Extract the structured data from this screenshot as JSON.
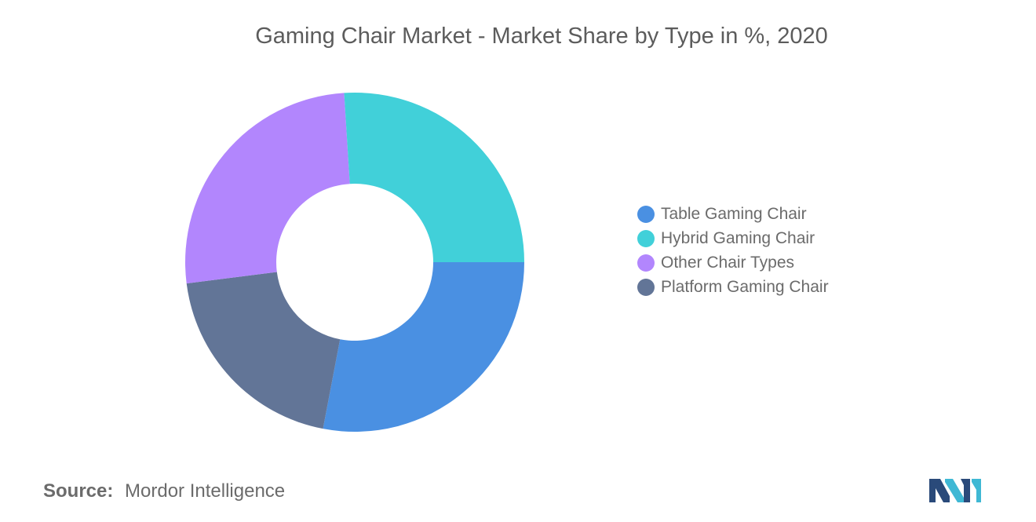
{
  "header": {
    "title": "Gaming Chair Market - Market Share by Type in %, 2020"
  },
  "chart_data": {
    "type": "pie",
    "title": "Gaming Chair Market - Market Share by Type in %, 2020",
    "donut": true,
    "categories": [
      "Table Gaming Chair",
      "Hybrid Gaming Chair",
      "Other Chair Types",
      "Platform Gaming Chair"
    ],
    "values": [
      28,
      26,
      26,
      20
    ],
    "display_order": [
      "Table Gaming Chair",
      "Platform Gaming Chair",
      "Other Chair Types",
      "Hybrid Gaming Chair"
    ],
    "colors": [
      "#4a90e2",
      "#41d0d9",
      "#b286fd",
      "#627597"
    ],
    "legend_position": "right"
  },
  "legend": {
    "items": [
      {
        "label": "Table Gaming Chair",
        "color": "#4a90e2"
      },
      {
        "label": "Hybrid Gaming Chair",
        "color": "#41d0d9"
      },
      {
        "label": "Other Chair Types",
        "color": "#b286fd"
      },
      {
        "label": "Platform Gaming Chair",
        "color": "#627597"
      }
    ]
  },
  "footer": {
    "source_label": "Source:",
    "source_value": "Mordor Intelligence",
    "logo_icon": "mordor-intelligence-logo-icon"
  }
}
